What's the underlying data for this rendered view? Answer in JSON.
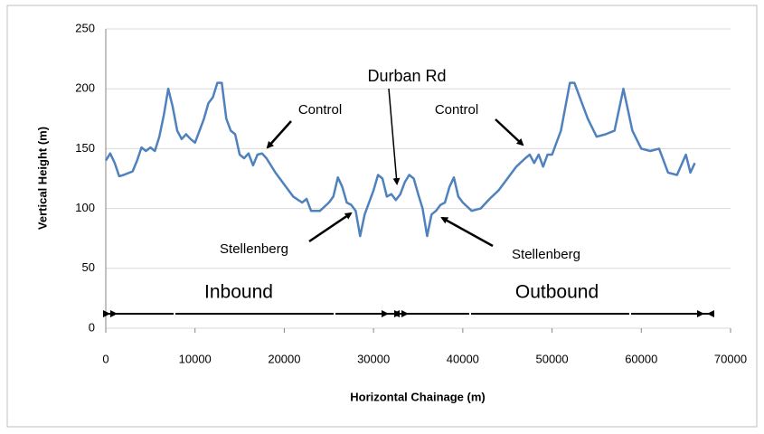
{
  "chart_data": {
    "type": "line",
    "x_label": "Horizontal Chainage (m)",
    "y_label": "Vertical Height (m)",
    "x": [
      0,
      500,
      1000,
      1500,
      2000,
      3000,
      3500,
      4000,
      4500,
      5000,
      5500,
      6000,
      6500,
      7000,
      7500,
      8000,
      8500,
      9000,
      9500,
      10000,
      11000,
      11500,
      12000,
      12500,
      13000,
      13500,
      14000,
      14500,
      15000,
      15500,
      16000,
      16500,
      17000,
      17500,
      18000,
      19000,
      20000,
      21000,
      22000,
      22500,
      23000,
      24000,
      25000,
      25500,
      26000,
      26500,
      27000,
      27500,
      28000,
      28500,
      29000,
      30000,
      30500,
      31000,
      31500,
      32000,
      32500,
      33000,
      33500,
      34000,
      34500,
      35000,
      35500,
      36000,
      36500,
      37000,
      37500,
      38000,
      38500,
      39000,
      39500,
      40000,
      41000,
      42000,
      43000,
      44000,
      45000,
      46000,
      47000,
      47500,
      48000,
      48500,
      49000,
      49500,
      50000,
      51000,
      52000,
      52500,
      53000,
      54000,
      55000,
      56000,
      57000,
      58000,
      59000,
      60000,
      61000,
      62000,
      63000,
      64000,
      65000,
      65500,
      66000
    ],
    "series": [
      {
        "name": "Vertical Height",
        "color": "#4f81bd",
        "values": [
          140,
          146,
          138,
          127,
          128,
          131,
          140,
          151,
          148,
          151,
          148,
          160,
          178,
          200,
          185,
          165,
          158,
          162,
          158,
          155,
          175,
          188,
          193,
          205,
          205,
          175,
          165,
          162,
          145,
          142,
          146,
          136,
          145,
          146,
          142,
          130,
          120,
          110,
          105,
          108,
          98,
          98,
          105,
          110,
          126,
          118,
          105,
          103,
          98,
          77,
          95,
          115,
          128,
          125,
          110,
          112,
          107,
          112,
          122,
          128,
          125,
          112,
          100,
          77,
          95,
          98,
          103,
          105,
          118,
          126,
          110,
          105,
          98,
          100,
          108,
          115,
          125,
          135,
          142,
          145,
          138,
          145,
          135,
          145,
          145,
          165,
          205,
          205,
          195,
          175,
          160,
          162,
          165,
          200,
          165,
          150,
          148,
          150,
          130,
          128,
          145,
          130,
          138
        ]
      }
    ],
    "xlim": [
      0,
      70000
    ],
    "xticks": [
      0,
      10000,
      20000,
      30000,
      40000,
      50000,
      60000,
      70000
    ],
    "ylim": [
      0,
      250
    ],
    "yticks": [
      0,
      50,
      100,
      150,
      200,
      250
    ],
    "grid": true,
    "annotations": [
      "Durban Rd",
      "Control",
      "Control",
      "Stellenberg",
      "Stellenberg",
      "Inbound",
      "Outbound"
    ]
  }
}
